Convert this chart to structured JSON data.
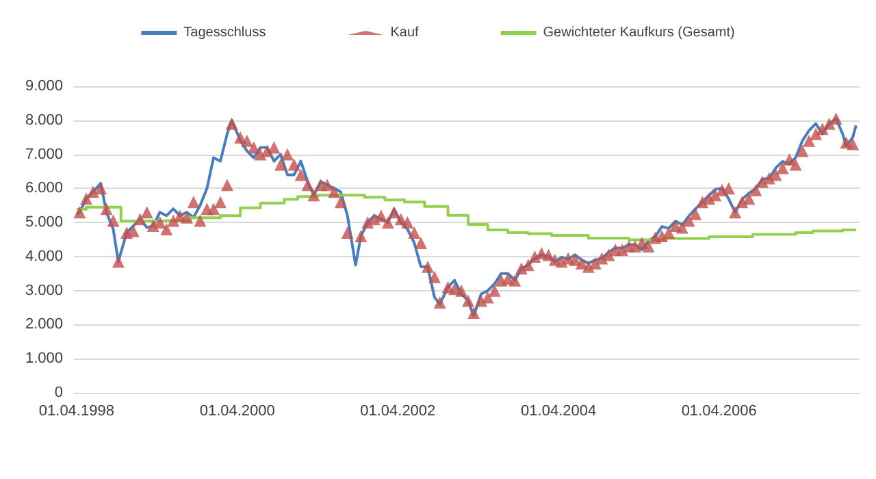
{
  "chart_data": {
    "type": "line",
    "xlim": [
      "1998-03-20",
      "2007-12-31"
    ],
    "ylim": [
      0,
      9000
    ],
    "xticks": [
      {
        "value": "1998-04-01",
        "label": "01.04.1998"
      },
      {
        "value": "2000-04-01",
        "label": "01.04.2000"
      },
      {
        "value": "2002-04-01",
        "label": "01.04.2002"
      },
      {
        "value": "2004-04-01",
        "label": "01.04.2004"
      },
      {
        "value": "2006-04-01",
        "label": "01.04.2006"
      }
    ],
    "yticks": [
      0,
      {
        "value": 1000,
        "label": "1.000"
      },
      {
        "value": 2000,
        "label": "2.000"
      },
      {
        "value": 3000,
        "label": "3.000"
      },
      {
        "value": 4000,
        "label": "4.000"
      },
      {
        "value": 5000,
        "label": "5.000"
      },
      {
        "value": 6000,
        "label": "6.000"
      },
      {
        "value": 7000,
        "label": "7.000"
      },
      {
        "value": 8000,
        "label": "8.000"
      },
      {
        "value": 9000,
        "label": "9.000"
      }
    ],
    "grid": "y",
    "legend": "top",
    "series": [
      {
        "name": "Tagesschluss",
        "color": "#4a7ebb",
        "marker": "none",
        "x": [
          "1998-04-01",
          "1998-04-15",
          "1998-05-15",
          "1998-06-15",
          "1998-07-20",
          "1998-08-15",
          "1998-09-15",
          "1998-10-08",
          "1998-11-15",
          "1998-12-15",
          "1999-01-15",
          "1999-02-15",
          "1999-03-15",
          "1999-04-15",
          "1999-05-15",
          "1999-06-15",
          "1999-07-15",
          "1999-08-15",
          "1999-09-15",
          "1999-10-15",
          "1999-11-15",
          "1999-12-15",
          "2000-01-15",
          "2000-02-15",
          "2000-03-07",
          "2000-04-15",
          "2000-05-15",
          "2000-06-15",
          "2000-07-15",
          "2000-08-15",
          "2000-09-15",
          "2000-10-15",
          "2000-11-15",
          "2000-12-15",
          "2001-01-15",
          "2001-02-15",
          "2001-03-15",
          "2001-04-15",
          "2001-05-15",
          "2001-06-15",
          "2001-07-15",
          "2001-08-15",
          "2001-09-21",
          "2001-10-15",
          "2001-11-15",
          "2001-12-15",
          "2002-01-15",
          "2002-02-15",
          "2002-03-15",
          "2002-04-15",
          "2002-05-15",
          "2002-06-15",
          "2002-07-15",
          "2002-08-15",
          "2002-09-15",
          "2002-10-09",
          "2002-11-15",
          "2002-12-15",
          "2003-01-15",
          "2003-02-15",
          "2003-03-12",
          "2003-04-15",
          "2003-05-15",
          "2003-06-15",
          "2003-07-15",
          "2003-08-15",
          "2003-09-15",
          "2003-10-15",
          "2003-11-15",
          "2003-12-15",
          "2004-01-15",
          "2004-02-15",
          "2004-03-15",
          "2004-04-15",
          "2004-05-15",
          "2004-06-15",
          "2004-07-15",
          "2004-08-15",
          "2004-09-15",
          "2004-10-15",
          "2004-11-15",
          "2004-12-15",
          "2005-01-15",
          "2005-02-15",
          "2005-03-15",
          "2005-04-15",
          "2005-05-15",
          "2005-06-15",
          "2005-07-15",
          "2005-08-15",
          "2005-09-15",
          "2005-10-15",
          "2005-11-15",
          "2005-12-15",
          "2006-01-15",
          "2006-02-15",
          "2006-03-15",
          "2006-04-15",
          "2006-05-15",
          "2006-06-13",
          "2006-07-15",
          "2006-08-15",
          "2006-09-15",
          "2006-10-15",
          "2006-11-15",
          "2006-12-15",
          "2007-01-15",
          "2007-02-15",
          "2007-03-15",
          "2007-04-15",
          "2007-05-15",
          "2007-06-15",
          "2007-07-15",
          "2007-08-15",
          "2007-09-15",
          "2007-10-15",
          "2007-10-31",
          "2007-11-30",
          "2007-12-15"
        ],
        "values": [
          5250,
          5300,
          5700,
          5900,
          6150,
          5300,
          4800,
          3850,
          4700,
          4900,
          5100,
          4850,
          4900,
          5300,
          5200,
          5400,
          5200,
          5300,
          5150,
          5500,
          6000,
          6900,
          6800,
          7600,
          8000,
          7400,
          7100,
          6900,
          7200,
          7200,
          6800,
          7000,
          6400,
          6400,
          6800,
          6200,
          5800,
          6200,
          6100,
          6000,
          5900,
          5200,
          3750,
          4600,
          5000,
          5200,
          5100,
          5000,
          5400,
          5000,
          4800,
          4400,
          3700,
          3700,
          2800,
          2600,
          3100,
          3300,
          2900,
          2700,
          2250,
          2900,
          3000,
          3200,
          3500,
          3500,
          3300,
          3650,
          3750,
          3950,
          4050,
          4000,
          3850,
          3980,
          3920,
          4050,
          3900,
          3800,
          3900,
          3950,
          4130,
          4250,
          4250,
          4350,
          4350,
          4200,
          4460,
          4590,
          4880,
          4830,
          5040,
          4930,
          5190,
          5400,
          5600,
          5800,
          5970,
          6010,
          5690,
          5300,
          5680,
          5860,
          6000,
          6270,
          6300,
          6600,
          6790,
          6720,
          6900,
          7400,
          7700,
          7900,
          7600,
          7900,
          8050,
          7600,
          7250,
          7500,
          7850
        ]
      },
      {
        "name": "Kauf",
        "type": "scatter",
        "color": "#c0504d",
        "marker": "triangle",
        "x": [
          "1998-04-15",
          "1998-05-15",
          "1998-06-15",
          "1998-07-20",
          "1998-08-15",
          "1998-09-15",
          "1998-10-08",
          "1998-11-15",
          "1998-12-15",
          "1999-01-15",
          "1999-02-15",
          "1999-03-15",
          "1999-04-15",
          "1999-05-15",
          "1999-06-15",
          "1999-07-15",
          "1999-08-15",
          "1999-09-15",
          "1999-10-15",
          "1999-11-15",
          "1999-12-15",
          "2000-01-15",
          "2000-02-15",
          "2000-03-07",
          "2000-04-15",
          "2000-05-15",
          "2000-06-15",
          "2000-07-15",
          "2000-08-15",
          "2000-09-15",
          "2000-10-15",
          "2000-11-15",
          "2000-12-15",
          "2001-01-15",
          "2001-02-15",
          "2001-03-15",
          "2001-04-15",
          "2001-05-15",
          "2001-06-15",
          "2001-07-15",
          "2001-08-15",
          "2001-10-15",
          "2001-11-15",
          "2001-12-15",
          "2002-01-15",
          "2002-02-15",
          "2002-03-15",
          "2002-04-15",
          "2002-05-15",
          "2002-06-15",
          "2002-07-15",
          "2002-08-15",
          "2002-09-15",
          "2002-10-09",
          "2002-11-15",
          "2002-12-15",
          "2003-01-15",
          "2003-02-15",
          "2003-03-12",
          "2003-04-15",
          "2003-05-15",
          "2003-06-15",
          "2003-07-15",
          "2003-08-15",
          "2003-09-15",
          "2003-10-15",
          "2003-11-15",
          "2003-12-15",
          "2004-01-15",
          "2004-02-15",
          "2004-03-15",
          "2004-04-15",
          "2004-05-15",
          "2004-06-15",
          "2004-07-15",
          "2004-08-15",
          "2004-09-15",
          "2004-10-15",
          "2004-11-15",
          "2004-12-15",
          "2005-01-15",
          "2005-02-15",
          "2005-03-15",
          "2005-04-15",
          "2005-05-15",
          "2005-06-15",
          "2005-07-15",
          "2005-08-15",
          "2005-09-15",
          "2005-10-15",
          "2005-11-15",
          "2005-12-15",
          "2006-01-15",
          "2006-02-15",
          "2006-03-15",
          "2006-04-15",
          "2006-05-15",
          "2006-06-13",
          "2006-07-15",
          "2006-08-15",
          "2006-09-15",
          "2006-10-15",
          "2006-11-15",
          "2006-12-15",
          "2007-01-15",
          "2007-02-15",
          "2007-03-15",
          "2007-04-15",
          "2007-05-15",
          "2007-06-15",
          "2007-07-15",
          "2007-08-15",
          "2007-09-15",
          "2007-10-31",
          "2007-11-30"
        ],
        "values": [
          5300,
          5700,
          5900,
          6000,
          5400,
          5050,
          3850,
          4700,
          4750,
          5100,
          5300,
          4900,
          5000,
          4800,
          5050,
          5200,
          5150,
          5600,
          5050,
          5400,
          5400,
          5600,
          6100,
          7900,
          7500,
          7400,
          7200,
          7000,
          7100,
          7200,
          6700,
          7000,
          6700,
          6400,
          6100,
          5800,
          6100,
          6100,
          5900,
          5600,
          4700,
          4600,
          5000,
          5100,
          5200,
          5000,
          5300,
          5100,
          5000,
          4700,
          4400,
          3700,
          3400,
          2650,
          3100,
          3050,
          3000,
          2700,
          2350,
          2700,
          2800,
          3000,
          3300,
          3350,
          3300,
          3650,
          3750,
          4000,
          4100,
          4050,
          3900,
          3850,
          3950,
          3900,
          3800,
          3700,
          3800,
          3950,
          4050,
          4200,
          4200,
          4300,
          4300,
          4400,
          4300,
          4550,
          4600,
          4700,
          4900,
          4850,
          5050,
          5250,
          5600,
          5700,
          5800,
          5950,
          6000,
          5300,
          5600,
          5700,
          5950,
          6200,
          6300,
          6400,
          6600,
          6850,
          6700,
          7100,
          7400,
          7600,
          7750,
          7900,
          8050,
          7350,
          7300
        ]
      },
      {
        "name": "Gewichteter Kaufkurs (Gesamt)",
        "type": "step",
        "color": "#92d050",
        "marker": "none",
        "x": [
          "1998-04-01",
          "1998-05-15",
          "1998-10-20",
          "1999-03-01",
          "1999-09-01",
          "2000-01-15",
          "2000-04-15",
          "2000-07-15",
          "2000-11-01",
          "2001-01-01",
          "2001-04-01",
          "2001-11-01",
          "2002-02-01",
          "2002-05-01",
          "2002-08-01",
          "2002-11-15",
          "2003-02-15",
          "2003-05-15",
          "2003-08-15",
          "2003-11-15",
          "2004-03-01",
          "2004-08-15",
          "2005-02-15",
          "2005-08-01",
          "2006-02-15",
          "2006-09-01",
          "2007-03-15",
          "2007-06-01",
          "2007-10-15",
          "2007-12-15"
        ],
        "values": [
          5390,
          5450,
          5040,
          5060,
          5140,
          5200,
          5430,
          5570,
          5680,
          5760,
          5800,
          5740,
          5660,
          5600,
          5470,
          5210,
          4940,
          4780,
          4700,
          4670,
          4620,
          4540,
          4490,
          4530,
          4580,
          4650,
          4700,
          4750,
          4780,
          4780
        ]
      }
    ]
  }
}
